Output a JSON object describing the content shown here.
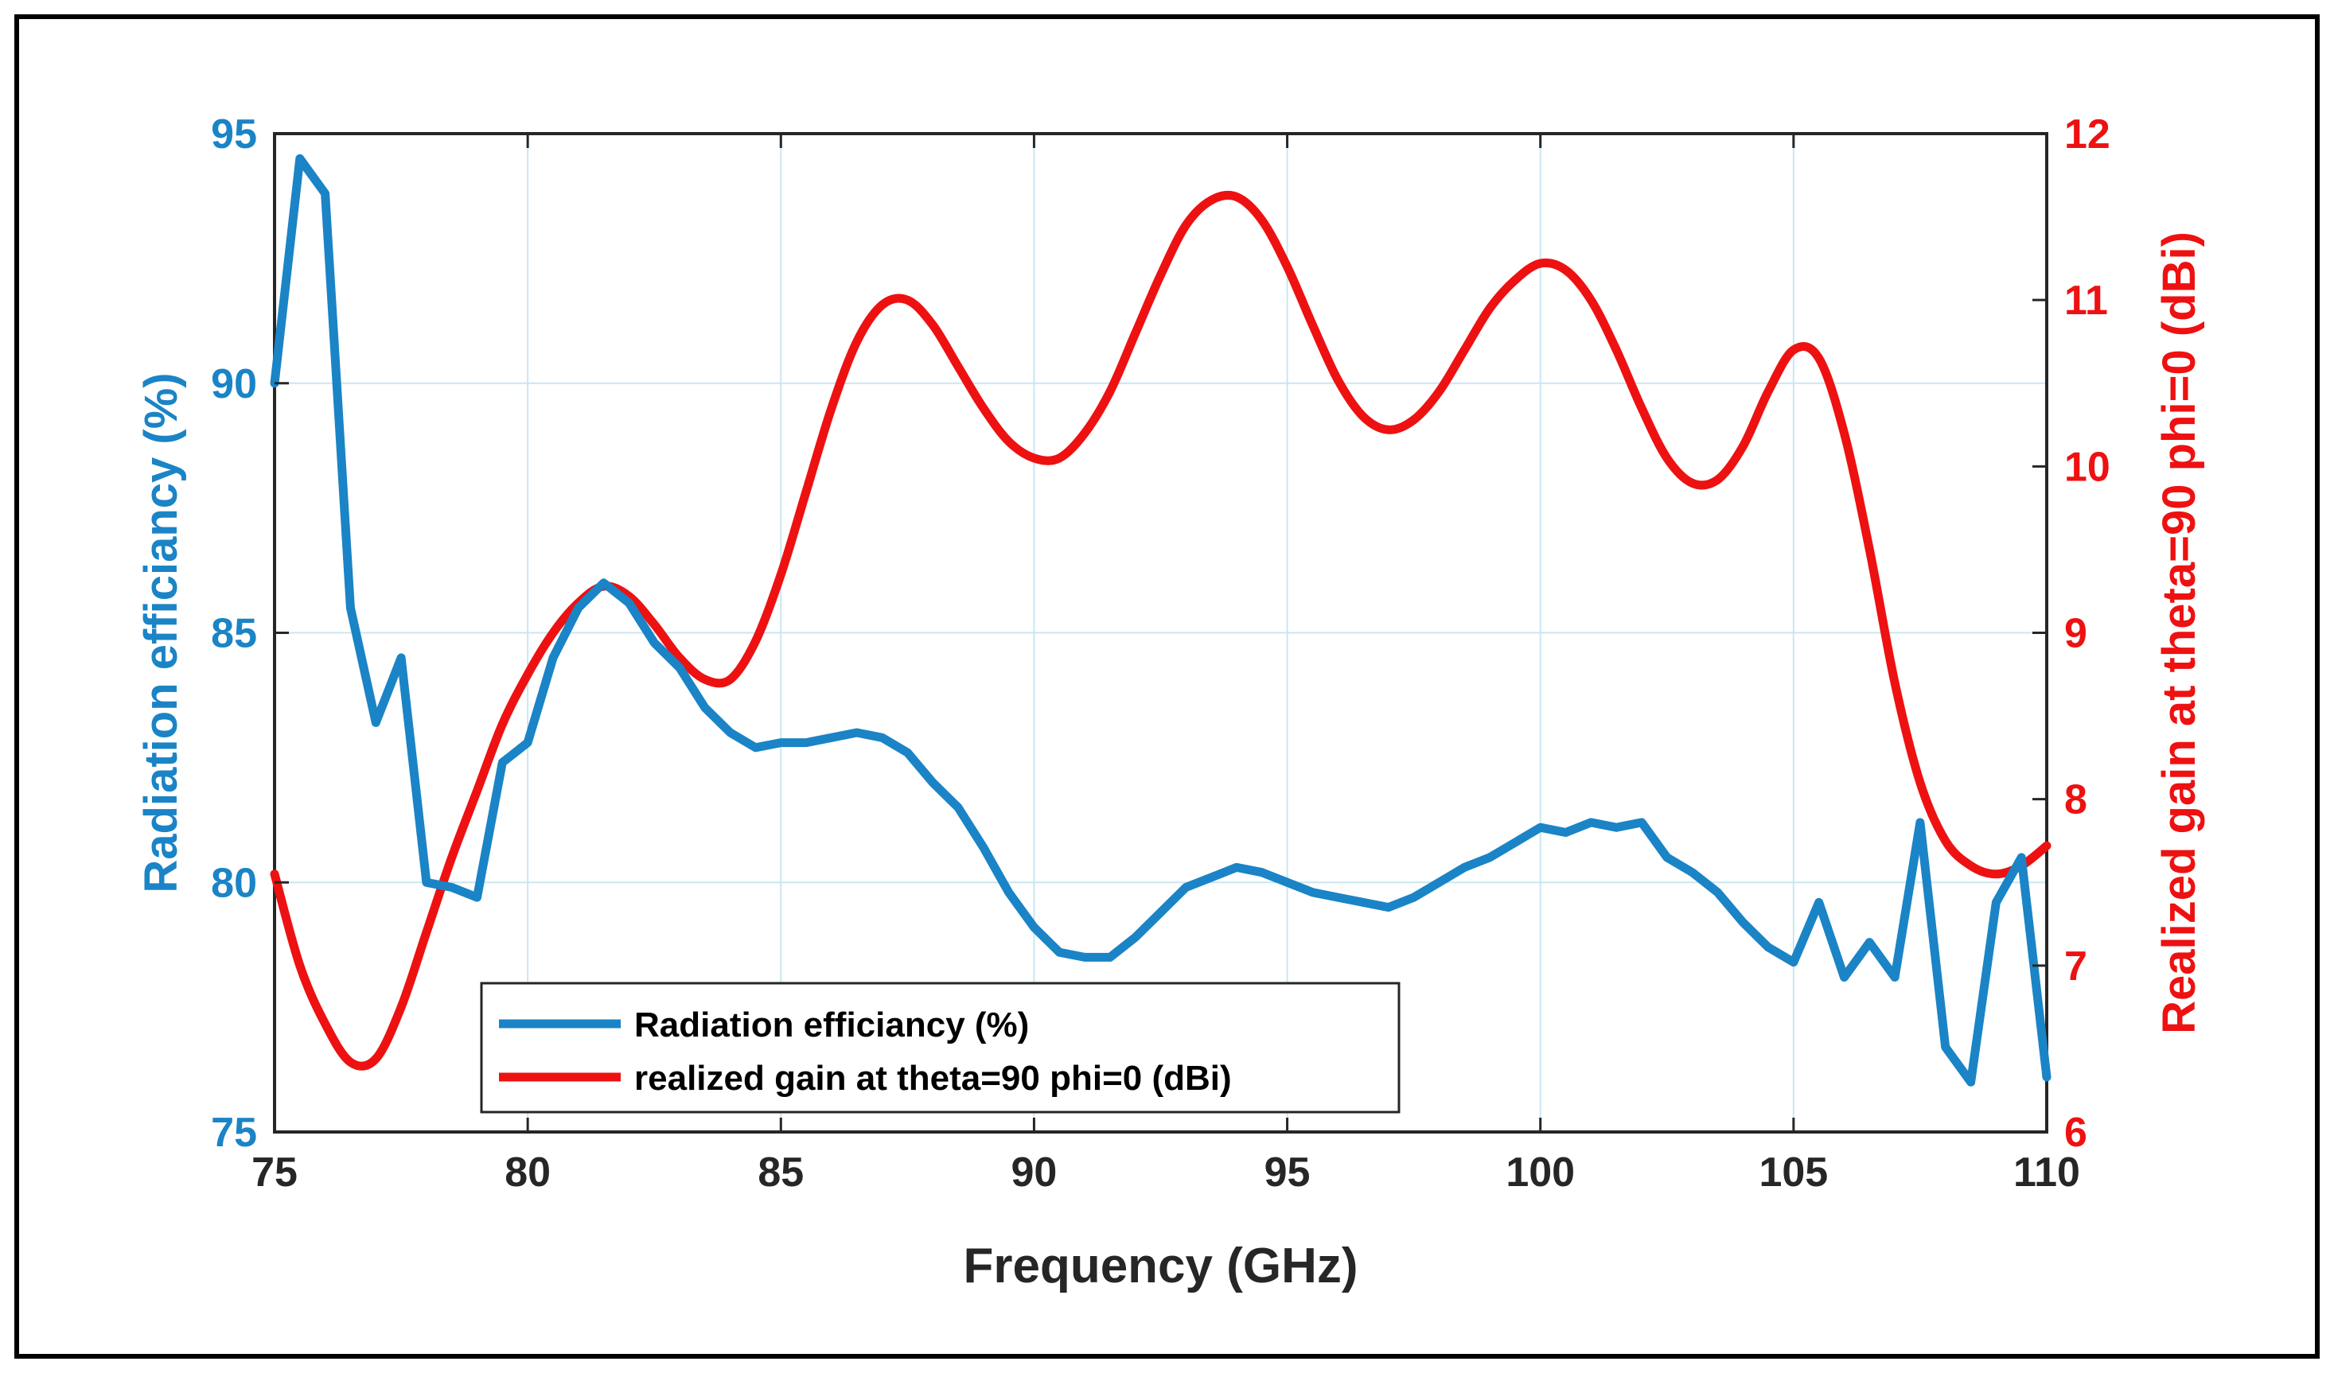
{
  "chart_data": {
    "type": "line",
    "title": "",
    "xlabel": "Frequency (GHz)",
    "ylabel_left": "Radiation efficiancy (%)",
    "ylabel_right": "Realized gain at theta=90 phi=0 (dBi)",
    "xlim": [
      75,
      110
    ],
    "ylim_left": [
      75,
      95
    ],
    "ylim_right": [
      6,
      12
    ],
    "xticks": [
      75,
      80,
      85,
      90,
      95,
      100,
      105,
      110
    ],
    "yticks_left": [
      75,
      80,
      85,
      90,
      95
    ],
    "yticks_right": [
      6,
      7,
      8,
      9,
      10,
      11,
      12
    ],
    "grid": true,
    "legend_position": "bottom-center",
    "colors": {
      "efficiency": "#1a84c6",
      "gain": "#ee1111",
      "axis": "#262626",
      "grid": "#c9e6f3"
    },
    "series": [
      {
        "name": "Radiation efficiancy (%)",
        "axis": "left",
        "x": [
          75,
          75.5,
          76,
          76.5,
          77,
          77.5,
          78,
          78.5,
          79,
          79.5,
          80,
          80.5,
          81,
          81.5,
          82,
          82.5,
          83,
          83.5,
          84,
          84.5,
          85,
          85.5,
          86,
          86.5,
          87,
          87.5,
          88,
          88.5,
          89,
          89.5,
          90,
          90.5,
          91,
          91.5,
          92,
          92.5,
          93,
          93.5,
          94,
          94.5,
          95,
          95.5,
          96,
          96.5,
          97,
          97.5,
          98,
          98.5,
          99,
          99.5,
          100,
          100.5,
          101,
          101.5,
          102,
          102.5,
          103,
          103.5,
          104,
          104.5,
          105,
          105.5,
          106,
          106.5,
          107,
          107.5,
          108,
          108.5,
          109,
          109.5,
          110
        ],
        "y": [
          90,
          94.5,
          93.8,
          85.5,
          83.2,
          84.5,
          80,
          79.9,
          79.7,
          82.4,
          82.8,
          84.5,
          85.5,
          86,
          85.6,
          84.8,
          84.3,
          83.5,
          83,
          82.7,
          82.8,
          82.8,
          82.9,
          83,
          82.9,
          82.6,
          82,
          81.5,
          80.7,
          79.8,
          79.1,
          78.6,
          78.5,
          78.5,
          78.9,
          79.4,
          79.9,
          80.1,
          80.3,
          80.2,
          80,
          79.8,
          79.7,
          79.6,
          79.5,
          79.7,
          80.0,
          80.3,
          80.5,
          80.8,
          81.1,
          81.0,
          81.2,
          81.1,
          81.2,
          80.5,
          80.2,
          79.8,
          79.2,
          78.7,
          78.4,
          79.6,
          78.1,
          78.8,
          78.1,
          81.2,
          76.7,
          76,
          79.6,
          80.5,
          76.1
        ]
      },
      {
        "name": "realized gain at theta=90 phi=0 (dBi)",
        "axis": "right",
        "x": [
          75,
          75.5,
          76,
          76.5,
          77,
          77.5,
          78,
          78.5,
          79,
          79.5,
          80,
          80.5,
          81,
          81.5,
          82,
          82.5,
          83,
          83.5,
          84,
          84.5,
          85,
          85.5,
          86,
          86.5,
          87,
          87.5,
          88,
          88.5,
          89,
          89.5,
          90,
          90.5,
          91,
          91.5,
          92,
          92.5,
          93,
          93.5,
          94,
          94.5,
          95,
          95.5,
          96,
          96.5,
          97,
          97.5,
          98,
          98.5,
          99,
          99.5,
          100,
          100.5,
          101,
          101.5,
          102,
          102.5,
          103,
          103.5,
          104,
          104.5,
          105,
          105.5,
          106,
          106.5,
          107,
          107.5,
          108,
          108.5,
          109,
          109.5,
          110
        ],
        "y": [
          7.55,
          7.0,
          6.65,
          6.42,
          6.44,
          6.75,
          7.2,
          7.65,
          8.05,
          8.45,
          8.75,
          9.0,
          9.18,
          9.28,
          9.22,
          9.05,
          8.85,
          8.72,
          8.72,
          8.95,
          9.35,
          9.85,
          10.35,
          10.75,
          10.97,
          11.0,
          10.85,
          10.6,
          10.35,
          10.15,
          10.05,
          10.05,
          10.2,
          10.45,
          10.8,
          11.15,
          11.45,
          11.6,
          11.62,
          11.48,
          11.2,
          10.85,
          10.52,
          10.3,
          10.22,
          10.28,
          10.45,
          10.7,
          10.95,
          11.12,
          11.22,
          11.18,
          11.0,
          10.7,
          10.35,
          10.05,
          9.9,
          9.92,
          10.12,
          10.45,
          10.7,
          10.65,
          10.2,
          9.5,
          8.7,
          8.1,
          7.75,
          7.6,
          7.55,
          7.6,
          7.72
        ]
      }
    ]
  }
}
